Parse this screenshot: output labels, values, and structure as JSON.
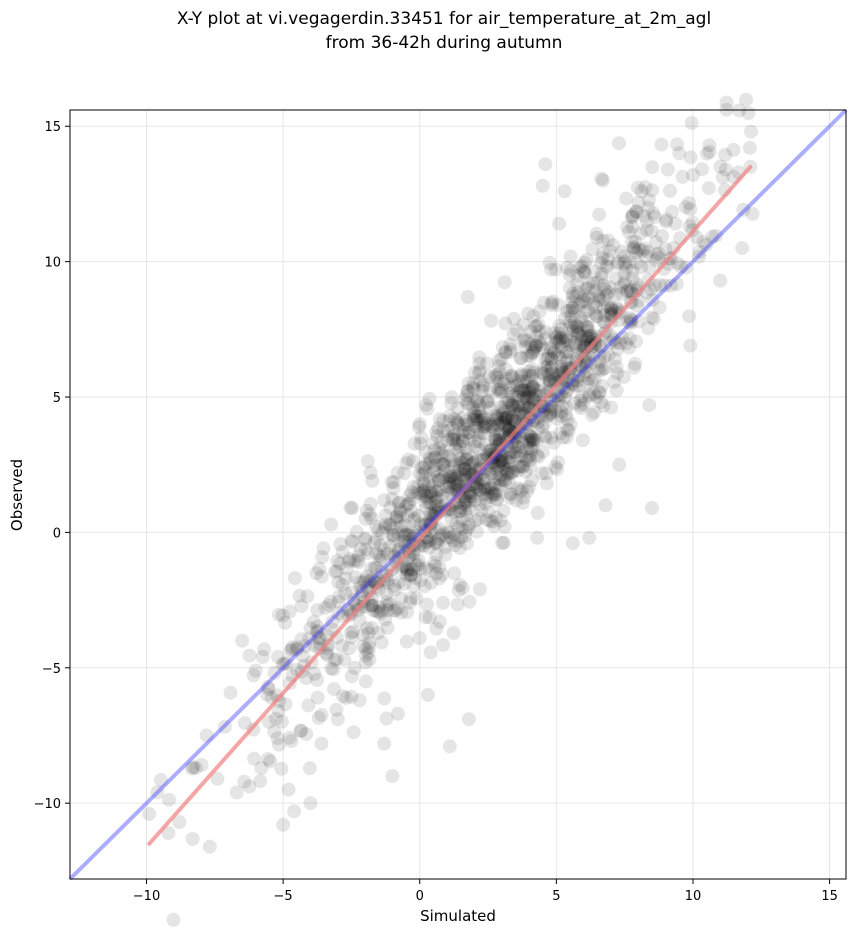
{
  "chart_data": {
    "type": "scatter",
    "title_lines": [
      "X-Y plot at vi.vegagerdin.33451 for air_temperature_at_2m_agl",
      "from 36-42h during autumn"
    ],
    "xlabel": "Simulated",
    "ylabel": "Observed",
    "xlim": [
      -12.8,
      15.6
    ],
    "ylim": [
      -12.8,
      15.6
    ],
    "xticks": [
      -10,
      -5,
      0,
      5,
      10,
      15
    ],
    "yticks": [
      -10,
      -5,
      0,
      5,
      10,
      15
    ],
    "tick_labels_x": [
      "−10",
      "−5",
      "0",
      "5",
      "10",
      "15"
    ],
    "tick_labels_y": [
      "−10",
      "−5",
      "0",
      "5",
      "10",
      "15"
    ],
    "grid": true,
    "point_color": "#000000",
    "point_alpha": 0.1,
    "points": {
      "approximate_count": 1600,
      "sampled_cloud": {
        "x_range": [
          -10,
          12.2
        ],
        "slope": 1.15,
        "intercept": 0.2,
        "spread": 1.7
      },
      "notable": [
        [
          -9.9,
          -10.4
        ],
        [
          -9.6,
          -9.6
        ],
        [
          -9.2,
          -11.1
        ],
        [
          -8.8,
          -10.7
        ],
        [
          -8.2,
          -8.7
        ],
        [
          -7.8,
          -7.5
        ],
        [
          -7.4,
          -9.1
        ],
        [
          -6.7,
          -9.6
        ],
        [
          -6.5,
          -4.0
        ],
        [
          -6.0,
          -5.1
        ],
        [
          -5.8,
          -8.7
        ],
        [
          -5.2,
          -7.6
        ],
        [
          -5.0,
          -10.8
        ],
        [
          -4.8,
          -9.5
        ],
        [
          -4.6,
          -10.3
        ],
        [
          -4.2,
          -4.2
        ],
        [
          -4.0,
          -10.0
        ],
        [
          -3.6,
          -7.8
        ],
        [
          -3.0,
          -6.9
        ],
        [
          -2.5,
          -0.3
        ],
        [
          -2.2,
          -6.2
        ],
        [
          -1.8,
          2.2
        ],
        [
          -1.3,
          -7.8
        ],
        [
          -1.0,
          -9.0
        ],
        [
          -0.8,
          -6.7
        ],
        [
          0.0,
          4.0
        ],
        [
          0.3,
          -6.0
        ],
        [
          1.1,
          -7.9
        ],
        [
          1.8,
          -6.9
        ],
        [
          2.2,
          -2.1
        ],
        [
          3.0,
          6.4
        ],
        [
          4.6,
          13.6
        ],
        [
          4.5,
          12.8
        ],
        [
          5.1,
          11.4
        ],
        [
          5.3,
          12.6
        ],
        [
          6.2,
          -0.2
        ],
        [
          6.8,
          1.0
        ],
        [
          7.3,
          2.5
        ],
        [
          8.5,
          0.9
        ],
        [
          9.5,
          14.0
        ],
        [
          10.0,
          13.2
        ],
        [
          10.6,
          14.3
        ],
        [
          11.2,
          13.4
        ],
        [
          12.1,
          13.5
        ],
        [
          11.8,
          10.5
        ],
        [
          9.9,
          6.9
        ],
        [
          11.0,
          9.3
        ],
        [
          8.4,
          4.7
        ],
        [
          4.3,
          -0.2
        ],
        [
          5.6,
          -0.4
        ]
      ]
    },
    "fit_line": {
      "color": "#f08080",
      "alpha": 0.7,
      "from": [
        -9.9,
        -11.5
      ],
      "to": [
        12.1,
        13.5
      ]
    },
    "identity_line": {
      "color": "#3333ff",
      "alpha": 0.4,
      "from": [
        -12.8,
        -12.8
      ],
      "to": [
        15.6,
        15.6
      ]
    }
  }
}
